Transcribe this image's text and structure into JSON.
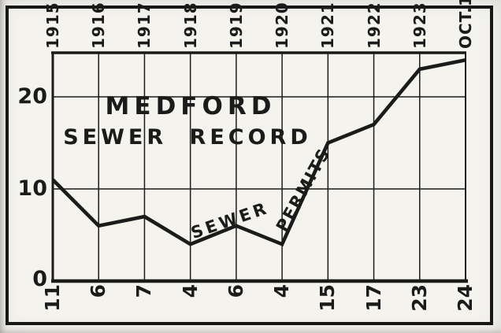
{
  "figure": {
    "background": "#f4f3ee",
    "ink": "#1b1b1b",
    "frame_color": "#171717"
  },
  "chart_data": {
    "type": "line",
    "title_lines": [
      "MEDFORD",
      "SEWER RECORD"
    ],
    "categories": [
      "1915",
      "1916",
      "1917",
      "1918",
      "1919",
      "1920",
      "1921",
      "1922",
      "1923",
      "OCT.1"
    ],
    "values": [
      11,
      6,
      7,
      4,
      6,
      4,
      15,
      17,
      23,
      24
    ],
    "value_labels": [
      "11",
      "6",
      "7",
      "4",
      "6",
      "4",
      "15",
      "17",
      "23",
      "24"
    ],
    "y_ticks": [
      "0",
      "10",
      "20"
    ],
    "ylim": [
      0,
      25
    ],
    "grid": "on",
    "legend_position": "on-line",
    "series": [
      {
        "name": "SEWER PERMITS",
        "values": [
          11,
          6,
          7,
          4,
          6,
          4,
          15,
          17,
          23,
          24
        ]
      }
    ],
    "series_label_words": [
      "SEWER",
      "PERMITS"
    ],
    "line_color": "#1b1b1b",
    "xlabel": "",
    "ylabel": ""
  }
}
